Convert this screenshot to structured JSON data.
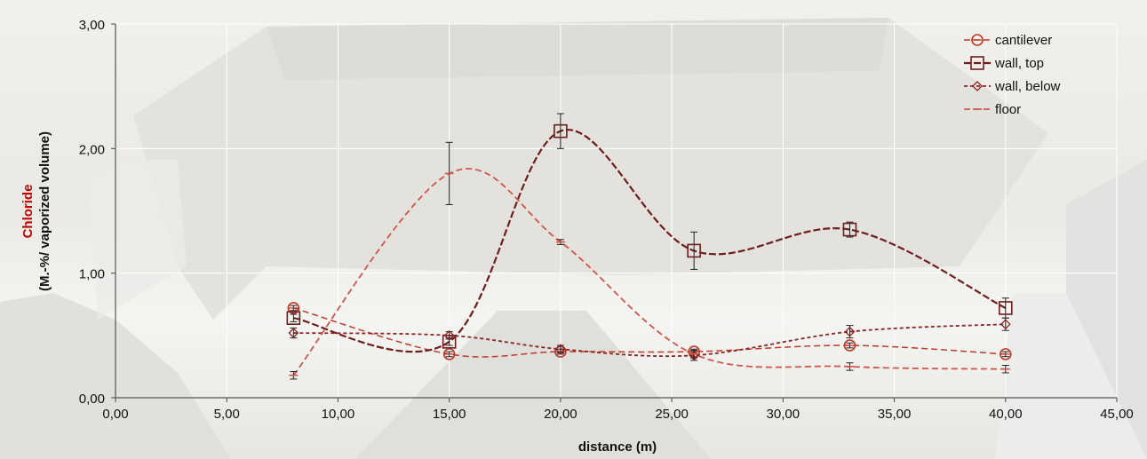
{
  "chart_data": {
    "type": "line",
    "xlabel": "distance (m)",
    "ylabel_part1": "Chloride",
    "ylabel_part2": "(M.-%/ vaporized volume)",
    "xlim": [
      0,
      45
    ],
    "ylim": [
      0,
      3
    ],
    "x_ticks": [
      "0,00",
      "5,00",
      "10,00",
      "15,00",
      "20,00",
      "25,00",
      "30,00",
      "35,00",
      "40,00",
      "45,00"
    ],
    "y_ticks": [
      "0,00",
      "1,00",
      "2,00",
      "3,00"
    ],
    "grid": true,
    "legend_position": "top-right",
    "background": "faded photograph of a concrete ship hull interior",
    "series": [
      {
        "name": "cantilever",
        "marker": "circle",
        "color": "#c0392b",
        "dash": "7,4",
        "width": 1.5,
        "x": [
          8,
          15,
          20,
          26,
          33,
          40
        ],
        "y": [
          0.72,
          0.35,
          0.37,
          0.37,
          0.42,
          0.35
        ],
        "err": [
          0.02,
          0.02,
          0.02,
          0.02,
          0.02,
          0.02
        ]
      },
      {
        "name": "wall, top",
        "marker": "square",
        "color": "#6e1e1e",
        "dash": "8,3",
        "width": 2.2,
        "x": [
          8,
          15,
          20,
          26,
          33,
          40
        ],
        "y": [
          0.64,
          0.45,
          2.14,
          1.18,
          1.35,
          0.72
        ],
        "err": [
          0.03,
          0.03,
          0.14,
          0.15,
          0.06,
          0.08
        ]
      },
      {
        "name": "wall, below",
        "marker": "diamond",
        "color": "#8b2525",
        "dash": "4,3",
        "width": 1.8,
        "x": [
          8,
          15,
          20,
          26,
          33,
          40
        ],
        "y": [
          0.52,
          0.5,
          0.39,
          0.34,
          0.53,
          0.59
        ],
        "err": [
          0.04,
          0.03,
          0.03,
          0.04,
          0.05,
          0.05
        ]
      },
      {
        "name": "floor",
        "marker": "dash",
        "color": "#d2554a",
        "dash": "7,4",
        "width": 1.8,
        "x": [
          8,
          15,
          20,
          26,
          33,
          40
        ],
        "y": [
          0.18,
          1.8,
          1.25,
          0.35,
          0.25,
          0.23
        ],
        "err": [
          0.03,
          0.25,
          0.02,
          0.03,
          0.03,
          0.03
        ]
      }
    ]
  }
}
